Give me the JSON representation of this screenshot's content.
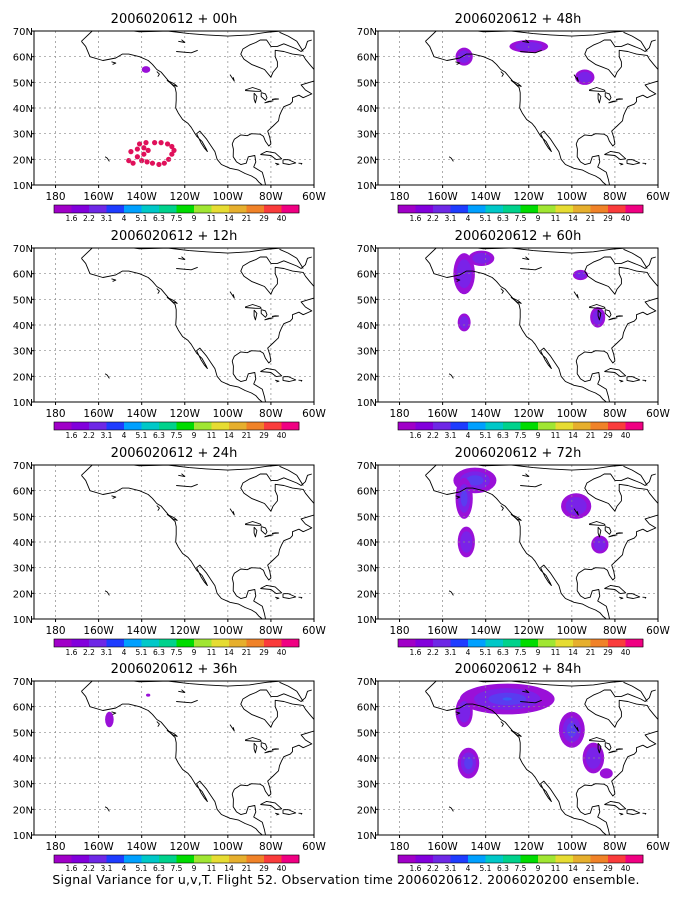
{
  "figure": {
    "caption": "Signal Variance for u,v,T. Flight 52. Observation time 2006020612. 2006020200 ensemble.",
    "x_ticks": [
      "180",
      "160W",
      "140W",
      "120W",
      "100W",
      "80W",
      "60W"
    ],
    "y_ticks": [
      "10N",
      "20N",
      "30N",
      "40N",
      "50N",
      "60N",
      "70N"
    ],
    "colorbar": {
      "labels": [
        "1.6",
        "2.2",
        "3.1",
        "4",
        "5.1",
        "6.3",
        "7.5",
        "9",
        "11",
        "14",
        "21",
        "29",
        "40"
      ],
      "colors": [
        "#a000c8",
        "#8200dc",
        "#6e28e6",
        "#1e3cff",
        "#00a0ff",
        "#00c8c8",
        "#00d28c",
        "#00dc00",
        "#a0e632",
        "#e6dc32",
        "#e6af2d",
        "#f08228",
        "#fa3c3c",
        "#f00082"
      ]
    }
  },
  "chart_data": [
    {
      "type": "heatmap",
      "title": "2006020612 + 00h",
      "xlabel": "",
      "ylabel": "",
      "xlim": [
        -190,
        -60
      ],
      "ylim": [
        10,
        70
      ],
      "grid": true,
      "features": [
        {
          "kind": "blob",
          "lon": -138,
          "lat": 55,
          "rx": 2,
          "ry": 1.3,
          "levels": 1
        },
        {
          "kind": "observation-points",
          "color": "#e0105a",
          "points": [
            [
              -134,
              26.5
            ],
            [
              -131,
              26.5
            ],
            [
              -128,
              26
            ],
            [
              -126,
              25
            ],
            [
              -125,
              23.5
            ],
            [
              -126,
              22
            ],
            [
              -127.5,
              20
            ],
            [
              -129.5,
              18.5
            ],
            [
              -132,
              18
            ],
            [
              -135,
              18.5
            ],
            [
              -137.5,
              19
            ],
            [
              -140,
              19.5
            ],
            [
              -144,
              18.5
            ],
            [
              -146,
              19.5
            ],
            [
              -142,
              21
            ],
            [
              -139,
              22
            ],
            [
              -137,
              23.5
            ],
            [
              -139,
              24.5
            ],
            [
              -142,
              24
            ],
            [
              -145,
              23
            ],
            [
              -141,
              26
            ],
            [
              -138,
              26.5
            ]
          ]
        }
      ]
    },
    {
      "type": "heatmap",
      "title": "2006020612 + 48h",
      "xlabel": "",
      "ylabel": "",
      "xlim": [
        -190,
        -60
      ],
      "ylim": [
        10,
        70
      ],
      "grid": true,
      "features": [
        {
          "kind": "blob",
          "lon": -150,
          "lat": 60,
          "rx": 4,
          "ry": 3.5,
          "levels": 2
        },
        {
          "kind": "blob",
          "lon": -120,
          "lat": 64,
          "rx": 9,
          "ry": 2.5,
          "levels": 2
        },
        {
          "kind": "blob",
          "lon": -94,
          "lat": 52,
          "rx": 4.5,
          "ry": 3,
          "levels": 2
        }
      ]
    },
    {
      "type": "heatmap",
      "title": "2006020612 + 12h",
      "xlabel": "",
      "ylabel": "",
      "xlim": [
        -190,
        -60
      ],
      "ylim": [
        10,
        70
      ],
      "grid": true,
      "features": []
    },
    {
      "type": "heatmap",
      "title": "2006020612 + 60h",
      "xlabel": "",
      "ylabel": "",
      "xlim": [
        -190,
        -60
      ],
      "ylim": [
        10,
        70
      ],
      "grid": true,
      "features": [
        {
          "kind": "blob",
          "lon": -150,
          "lat": 60,
          "rx": 5,
          "ry": 8,
          "levels": 2
        },
        {
          "kind": "blob",
          "lon": -142,
          "lat": 66,
          "rx": 6,
          "ry": 3,
          "levels": 2
        },
        {
          "kind": "blob",
          "lon": -150,
          "lat": 41,
          "rx": 3,
          "ry": 3.5,
          "levels": 2
        },
        {
          "kind": "blob",
          "lon": -96,
          "lat": 59.5,
          "rx": 3.5,
          "ry": 2,
          "levels": 2
        },
        {
          "kind": "blob",
          "lon": -88,
          "lat": 43,
          "rx": 3.5,
          "ry": 4,
          "levels": 2
        }
      ]
    },
    {
      "type": "heatmap",
      "title": "2006020612 + 24h",
      "xlabel": "",
      "ylabel": "",
      "xlim": [
        -190,
        -60
      ],
      "ylim": [
        10,
        70
      ],
      "grid": true,
      "features": []
    },
    {
      "type": "heatmap",
      "title": "2006020612 + 72h",
      "xlabel": "",
      "ylabel": "",
      "xlim": [
        -190,
        -60
      ],
      "ylim": [
        10,
        70
      ],
      "grid": true,
      "features": [
        {
          "kind": "blob",
          "lon": -145,
          "lat": 64,
          "rx": 10,
          "ry": 5,
          "levels": 3
        },
        {
          "kind": "blob",
          "lon": -150,
          "lat": 57,
          "rx": 4,
          "ry": 8,
          "levels": 3
        },
        {
          "kind": "blob",
          "lon": -149,
          "lat": 40,
          "rx": 4,
          "ry": 6,
          "levels": 2
        },
        {
          "kind": "blob",
          "lon": -98,
          "lat": 54,
          "rx": 7,
          "ry": 5,
          "levels": 2
        },
        {
          "kind": "blob",
          "lon": -87,
          "lat": 39,
          "rx": 4,
          "ry": 3.5,
          "levels": 2
        }
      ]
    },
    {
      "type": "heatmap",
      "title": "2006020612 + 36h",
      "xlabel": "",
      "ylabel": "",
      "xlim": [
        -190,
        -60
      ],
      "ylim": [
        10,
        70
      ],
      "grid": true,
      "features": [
        {
          "kind": "blob",
          "lon": -155,
          "lat": 55,
          "rx": 2,
          "ry": 3,
          "levels": 1
        },
        {
          "kind": "blob",
          "lon": -137,
          "lat": 64.5,
          "rx": 1,
          "ry": 0.6,
          "levels": 1
        }
      ]
    },
    {
      "type": "heatmap",
      "title": "2006020612 + 84h",
      "xlabel": "",
      "ylabel": "",
      "xlim": [
        -190,
        -60
      ],
      "ylim": [
        10,
        70
      ],
      "grid": true,
      "features": [
        {
          "kind": "blob",
          "lon": -130,
          "lat": 63,
          "rx": 22,
          "ry": 6,
          "levels": 4
        },
        {
          "kind": "blob",
          "lon": -150,
          "lat": 58,
          "rx": 4,
          "ry": 6,
          "levels": 2
        },
        {
          "kind": "blob",
          "lon": -100,
          "lat": 51,
          "rx": 6,
          "ry": 7,
          "levels": 3
        },
        {
          "kind": "blob",
          "lon": -90,
          "lat": 40,
          "rx": 5,
          "ry": 6,
          "levels": 2
        },
        {
          "kind": "blob",
          "lon": -84,
          "lat": 34,
          "rx": 3,
          "ry": 2,
          "levels": 1
        },
        {
          "kind": "blob",
          "lon": -148,
          "lat": 38,
          "rx": 5,
          "ry": 6,
          "levels": 3
        }
      ]
    }
  ]
}
